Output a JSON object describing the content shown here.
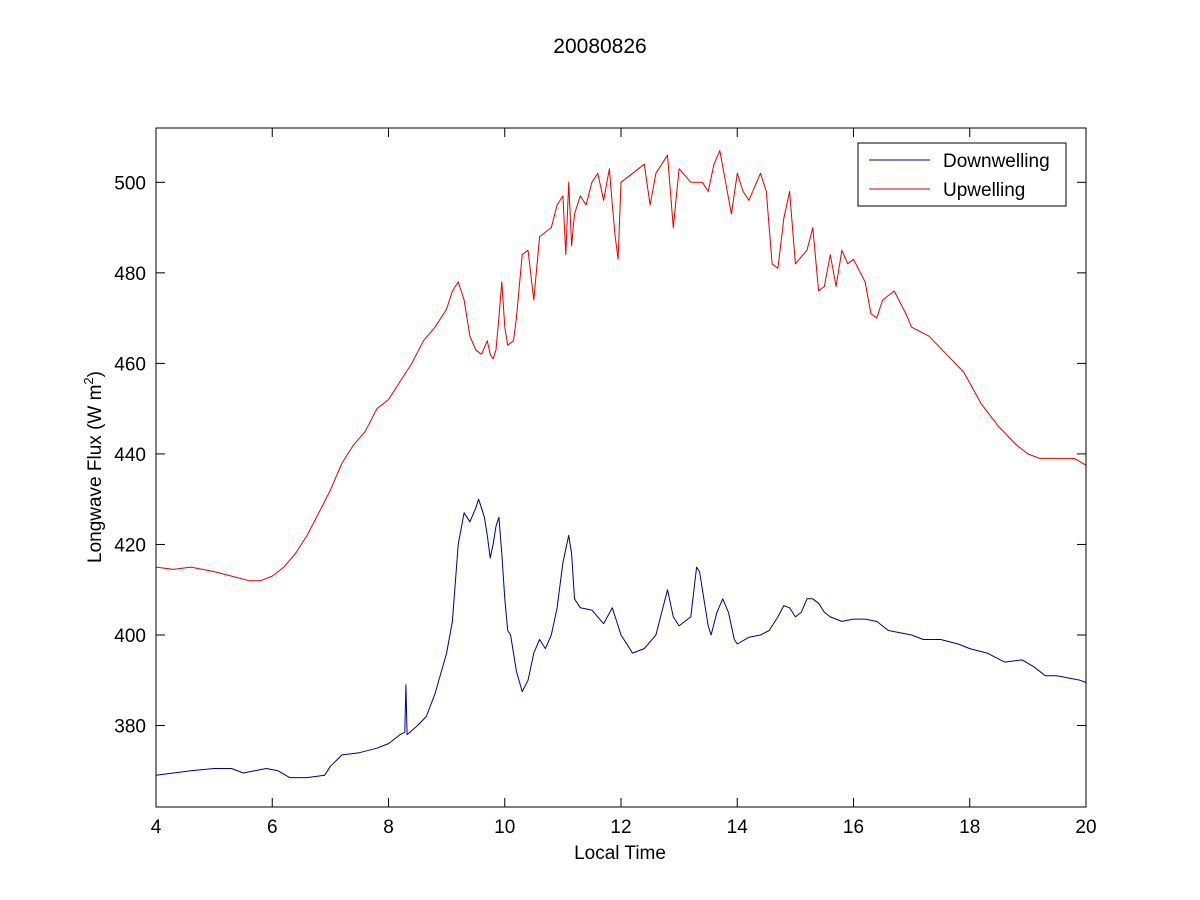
{
  "chart_data": {
    "type": "line",
    "title": "20080826",
    "xlabel": "Local Time",
    "ylabel_main": "Longwave Flux (W m",
    "ylabel_sup": "2",
    "ylabel_end": ")",
    "xlim": [
      4,
      20
    ],
    "ylim": [
      362,
      512
    ],
    "xticks": [
      4,
      6,
      8,
      10,
      12,
      14,
      16,
      18,
      20
    ],
    "yticks": [
      380,
      400,
      420,
      440,
      460,
      480,
      500
    ],
    "grid": false,
    "legend_position": "top-right",
    "series": [
      {
        "name": "Downwelling",
        "color": "#00008B",
        "points": [
          [
            4.0,
            369
          ],
          [
            4.3,
            369.5
          ],
          [
            4.6,
            370
          ],
          [
            5.0,
            370.5
          ],
          [
            5.3,
            370.5
          ],
          [
            5.5,
            369.5
          ],
          [
            5.7,
            370
          ],
          [
            5.9,
            370.5
          ],
          [
            6.1,
            370
          ],
          [
            6.3,
            368.5
          ],
          [
            6.6,
            368.5
          ],
          [
            6.9,
            369
          ],
          [
            7.0,
            371
          ],
          [
            7.2,
            373.5
          ],
          [
            7.5,
            374
          ],
          [
            7.8,
            375
          ],
          [
            8.0,
            376
          ],
          [
            8.2,
            378
          ],
          [
            8.28,
            378.5
          ],
          [
            8.3,
            389
          ],
          [
            8.32,
            378
          ],
          [
            8.5,
            380
          ],
          [
            8.65,
            382
          ],
          [
            8.8,
            387
          ],
          [
            9.0,
            396
          ],
          [
            9.1,
            403
          ],
          [
            9.2,
            420
          ],
          [
            9.3,
            427
          ],
          [
            9.4,
            425
          ],
          [
            9.5,
            428
          ],
          [
            9.55,
            430
          ],
          [
            9.6,
            428
          ],
          [
            9.65,
            426
          ],
          [
            9.7,
            422
          ],
          [
            9.75,
            417
          ],
          [
            9.8,
            420
          ],
          [
            9.85,
            424
          ],
          [
            9.9,
            426
          ],
          [
            9.95,
            418
          ],
          [
            10.0,
            408
          ],
          [
            10.05,
            401
          ],
          [
            10.1,
            400
          ],
          [
            10.2,
            392
          ],
          [
            10.3,
            387.5
          ],
          [
            10.4,
            390
          ],
          [
            10.5,
            396
          ],
          [
            10.6,
            399
          ],
          [
            10.7,
            397
          ],
          [
            10.8,
            400
          ],
          [
            10.9,
            406
          ],
          [
            11.0,
            416
          ],
          [
            11.1,
            422
          ],
          [
            11.15,
            418
          ],
          [
            11.2,
            408
          ],
          [
            11.3,
            406
          ],
          [
            11.5,
            405.5
          ],
          [
            11.7,
            402.5
          ],
          [
            11.85,
            406
          ],
          [
            11.9,
            404
          ],
          [
            12.0,
            400
          ],
          [
            12.2,
            396
          ],
          [
            12.4,
            397
          ],
          [
            12.6,
            400
          ],
          [
            12.7,
            405
          ],
          [
            12.8,
            410
          ],
          [
            12.9,
            404
          ],
          [
            13.0,
            402
          ],
          [
            13.1,
            403
          ],
          [
            13.2,
            404
          ],
          [
            13.3,
            415
          ],
          [
            13.35,
            414
          ],
          [
            13.4,
            410
          ],
          [
            13.5,
            402
          ],
          [
            13.55,
            400
          ],
          [
            13.65,
            405
          ],
          [
            13.75,
            408
          ],
          [
            13.85,
            405
          ],
          [
            13.95,
            399
          ],
          [
            14.0,
            398
          ],
          [
            14.2,
            399.5
          ],
          [
            14.4,
            400
          ],
          [
            14.55,
            401
          ],
          [
            14.7,
            404
          ],
          [
            14.8,
            406.5
          ],
          [
            14.9,
            406
          ],
          [
            15.0,
            404
          ],
          [
            15.1,
            405
          ],
          [
            15.2,
            408
          ],
          [
            15.3,
            408
          ],
          [
            15.4,
            407
          ],
          [
            15.5,
            405
          ],
          [
            15.6,
            404
          ],
          [
            15.8,
            403
          ],
          [
            16.0,
            403.5
          ],
          [
            16.2,
            403.5
          ],
          [
            16.4,
            403
          ],
          [
            16.6,
            401
          ],
          [
            16.8,
            400.5
          ],
          [
            17.0,
            400
          ],
          [
            17.2,
            399
          ],
          [
            17.5,
            399
          ],
          [
            17.8,
            398
          ],
          [
            18.0,
            397
          ],
          [
            18.3,
            396
          ],
          [
            18.6,
            394
          ],
          [
            18.9,
            394.5
          ],
          [
            19.1,
            393
          ],
          [
            19.3,
            391
          ],
          [
            19.5,
            391
          ],
          [
            19.7,
            390.5
          ],
          [
            19.9,
            390
          ],
          [
            20.0,
            389.5
          ]
        ]
      },
      {
        "name": "Upwelling",
        "color": "#E00000",
        "points": [
          [
            4.0,
            415
          ],
          [
            4.3,
            414.5
          ],
          [
            4.6,
            415
          ],
          [
            5.0,
            414
          ],
          [
            5.3,
            413
          ],
          [
            5.6,
            412
          ],
          [
            5.8,
            412
          ],
          [
            6.0,
            413
          ],
          [
            6.2,
            415
          ],
          [
            6.4,
            418
          ],
          [
            6.6,
            422
          ],
          [
            6.8,
            427
          ],
          [
            7.0,
            432
          ],
          [
            7.2,
            438
          ],
          [
            7.4,
            442
          ],
          [
            7.6,
            445
          ],
          [
            7.8,
            450
          ],
          [
            8.0,
            452
          ],
          [
            8.2,
            456
          ],
          [
            8.4,
            460
          ],
          [
            8.6,
            465
          ],
          [
            8.8,
            468
          ],
          [
            9.0,
            472
          ],
          [
            9.1,
            476
          ],
          [
            9.2,
            478
          ],
          [
            9.3,
            474
          ],
          [
            9.4,
            466
          ],
          [
            9.5,
            463
          ],
          [
            9.6,
            462
          ],
          [
            9.7,
            465
          ],
          [
            9.75,
            462
          ],
          [
            9.8,
            461
          ],
          [
            9.85,
            463
          ],
          [
            9.9,
            470
          ],
          [
            9.95,
            478
          ],
          [
            10.0,
            468
          ],
          [
            10.05,
            464
          ],
          [
            10.15,
            465
          ],
          [
            10.2,
            470
          ],
          [
            10.3,
            484
          ],
          [
            10.4,
            485
          ],
          [
            10.5,
            474
          ],
          [
            10.6,
            488
          ],
          [
            10.8,
            490
          ],
          [
            10.9,
            495
          ],
          [
            11.0,
            497
          ],
          [
            11.05,
            484
          ],
          [
            11.1,
            500
          ],
          [
            11.15,
            486
          ],
          [
            11.2,
            493
          ],
          [
            11.3,
            497
          ],
          [
            11.4,
            495
          ],
          [
            11.5,
            500
          ],
          [
            11.6,
            502
          ],
          [
            11.7,
            496
          ],
          [
            11.8,
            503
          ],
          [
            11.85,
            495
          ],
          [
            11.9,
            488
          ],
          [
            11.95,
            483
          ],
          [
            12.0,
            500
          ],
          [
            12.2,
            502
          ],
          [
            12.4,
            504
          ],
          [
            12.5,
            495
          ],
          [
            12.6,
            502
          ],
          [
            12.8,
            506
          ],
          [
            12.9,
            490
          ],
          [
            13.0,
            503
          ],
          [
            13.2,
            500
          ],
          [
            13.4,
            500
          ],
          [
            13.5,
            498
          ],
          [
            13.6,
            504
          ],
          [
            13.7,
            507
          ],
          [
            13.8,
            500
          ],
          [
            13.9,
            493
          ],
          [
            14.0,
            502
          ],
          [
            14.1,
            498
          ],
          [
            14.2,
            496
          ],
          [
            14.3,
            499
          ],
          [
            14.4,
            502
          ],
          [
            14.5,
            498
          ],
          [
            14.6,
            482
          ],
          [
            14.7,
            481
          ],
          [
            14.8,
            492
          ],
          [
            14.9,
            498
          ],
          [
            15.0,
            482
          ],
          [
            15.2,
            485
          ],
          [
            15.3,
            490
          ],
          [
            15.4,
            476
          ],
          [
            15.5,
            477
          ],
          [
            15.6,
            484
          ],
          [
            15.7,
            477
          ],
          [
            15.8,
            485
          ],
          [
            15.9,
            482
          ],
          [
            16.0,
            483
          ],
          [
            16.2,
            478
          ],
          [
            16.3,
            471
          ],
          [
            16.4,
            470
          ],
          [
            16.5,
            474
          ],
          [
            16.7,
            476
          ],
          [
            16.9,
            471
          ],
          [
            17.0,
            468
          ],
          [
            17.3,
            466
          ],
          [
            17.6,
            462
          ],
          [
            17.9,
            458
          ],
          [
            18.2,
            451
          ],
          [
            18.5,
            446
          ],
          [
            18.8,
            442
          ],
          [
            19.0,
            440
          ],
          [
            19.2,
            439
          ],
          [
            19.5,
            439
          ],
          [
            19.8,
            439
          ],
          [
            20.0,
            437.5
          ]
        ]
      }
    ]
  }
}
